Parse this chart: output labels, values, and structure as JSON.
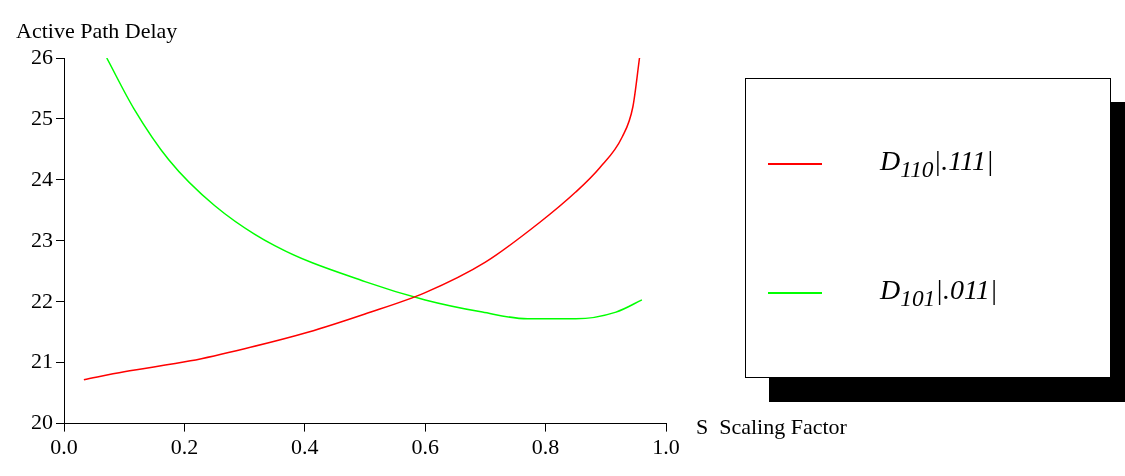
{
  "chart_data": {
    "type": "line",
    "xlabel": "S  Scaling Factor",
    "ylabel": "Active Path Delay",
    "xlim": [
      0,
      1
    ],
    "ylim": [
      20,
      26
    ],
    "xticks": [
      {
        "value": 0,
        "label": "0.0"
      },
      0.2,
      0.4,
      0.6,
      0.8,
      {
        "value": 1,
        "label": "1.0"
      }
    ],
    "yticks": [
      20,
      21,
      22,
      23,
      24,
      25,
      26
    ],
    "series": [
      {
        "name": "D$_{110}$|.111|",
        "color": "#ff0000",
        "x": [
          0.033,
          0.1,
          0.21,
          0.3,
          0.405,
          0.5,
          0.6,
          0.7,
          0.79,
          0.85,
          0.89,
          0.927,
          0.945,
          0.956
        ],
        "values": [
          20.72,
          20.85,
          21.03,
          21.23,
          21.5,
          21.8,
          22.15,
          22.65,
          23.3,
          23.8,
          24.2,
          24.7,
          25.2,
          26
        ]
      },
      {
        "name": "D$_{101}$|.011|",
        "color": "#00ff00",
        "x": [
          0.071,
          0.116,
          0.174,
          0.25,
          0.35,
          0.5,
          0.6,
          0.695,
          0.77,
          0.85,
          0.917,
          0.96
        ],
        "values": [
          26,
          25.17,
          24.33,
          23.58,
          22.92,
          22.33,
          22.03,
          21.83,
          21.72,
          21.72,
          21.83,
          22.03
        ]
      }
    ],
    "grid": false,
    "legend": "right",
    "marker": "none",
    "line_style": "solid"
  }
}
